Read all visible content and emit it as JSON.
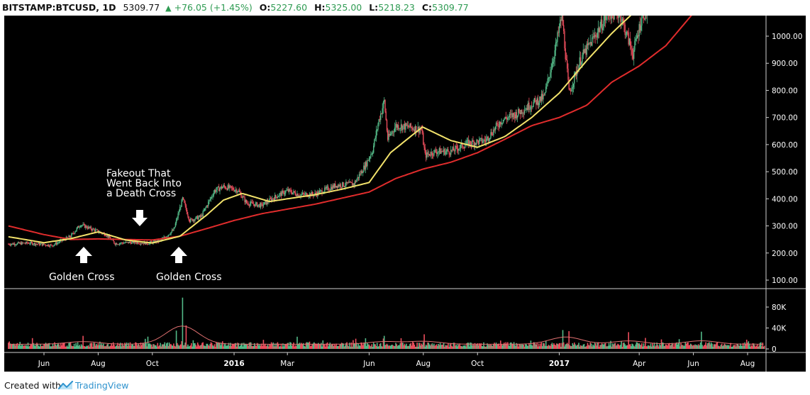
{
  "header": {
    "symbol": "BITSTAMP:BTCUSD, 1D",
    "last": "5309.77",
    "change": "+76.05 (+1.45%)",
    "o_label": "O:",
    "o_value": "5227.60",
    "h_label": "H:",
    "h_value": "5325.00",
    "l_label": "L:",
    "l_value": "5218.23",
    "c_label": "C:",
    "c_value": "5309.77"
  },
  "footer": {
    "created_with": "Created with",
    "brand": "TradingView"
  },
  "colors": {
    "background": "#000000",
    "bull": "#53b987",
    "bear": "#eb4d5c",
    "ma_fast": "#f2e26b",
    "ma_slow": "#e02c2c",
    "text": "#ffffff",
    "up": "#2e9b52"
  },
  "annotations": {
    "fakeout": [
      "Fakeout That",
      "Went Back Into",
      "a Death Cross"
    ],
    "golden_cross_1": "Golden Cross",
    "golden_cross_2": "Golden Cross"
  },
  "chart_data": {
    "type": "candlestick",
    "symbol": "BITSTAMP:BTCUSD",
    "interval": "1D",
    "x_ticks": [
      {
        "label": "Jun",
        "date": "2015-06-01",
        "bold": false
      },
      {
        "label": "Aug",
        "date": "2015-08-01",
        "bold": false
      },
      {
        "label": "Oct",
        "date": "2015-10-01",
        "bold": false
      },
      {
        "label": "2016",
        "date": "2016-01-01",
        "bold": true
      },
      {
        "label": "Mar",
        "date": "2016-03-01",
        "bold": false
      },
      {
        "label": "Jun",
        "date": "2016-06-01",
        "bold": false
      },
      {
        "label": "Aug",
        "date": "2016-08-01",
        "bold": false
      },
      {
        "label": "Oct",
        "date": "2016-10-01",
        "bold": false
      },
      {
        "label": "2017",
        "date": "2017-01-01",
        "bold": true
      },
      {
        "label": "Apr",
        "date": "2017-04-01",
        "bold": false
      },
      {
        "label": "Jun",
        "date": "2017-06-01",
        "bold": false
      },
      {
        "label": "Aug",
        "date": "2017-08-01",
        "bold": false
      }
    ],
    "price_axis": {
      "ticks": [
        "1000.00",
        "900.00",
        "800.00",
        "700.00",
        "600.00",
        "500.00",
        "400.00",
        "300.00",
        "200.00",
        "100.00"
      ],
      "range": [
        75,
        1085
      ]
    },
    "volume_axis": {
      "ticks": [
        "80K",
        "40K",
        "0"
      ],
      "range": [
        0,
        110000
      ]
    },
    "price_series": [
      {
        "date": "2015-04-22",
        "price": 233
      },
      {
        "date": "2015-05-15",
        "price": 237
      },
      {
        "date": "2015-06-10",
        "price": 228
      },
      {
        "date": "2015-07-01",
        "price": 262
      },
      {
        "date": "2015-07-12",
        "price": 305
      },
      {
        "date": "2015-07-25",
        "price": 288
      },
      {
        "date": "2015-08-10",
        "price": 268
      },
      {
        "date": "2015-08-20",
        "price": 235
      },
      {
        "date": "2015-09-10",
        "price": 240
      },
      {
        "date": "2015-09-25",
        "price": 236
      },
      {
        "date": "2015-10-10",
        "price": 245
      },
      {
        "date": "2015-10-25",
        "price": 285
      },
      {
        "date": "2015-11-04",
        "price": 400
      },
      {
        "date": "2015-11-12",
        "price": 320
      },
      {
        "date": "2015-11-25",
        "price": 335
      },
      {
        "date": "2015-12-10",
        "price": 430
      },
      {
        "date": "2015-12-20",
        "price": 445
      },
      {
        "date": "2016-01-05",
        "price": 432
      },
      {
        "date": "2016-01-15",
        "price": 385
      },
      {
        "date": "2016-02-01",
        "price": 375
      },
      {
        "date": "2016-02-15",
        "price": 405
      },
      {
        "date": "2016-03-01",
        "price": 430
      },
      {
        "date": "2016-03-15",
        "price": 415
      },
      {
        "date": "2016-04-01",
        "price": 417
      },
      {
        "date": "2016-04-25",
        "price": 450
      },
      {
        "date": "2016-05-15",
        "price": 455
      },
      {
        "date": "2016-05-28",
        "price": 525
      },
      {
        "date": "2016-06-05",
        "price": 580
      },
      {
        "date": "2016-06-12",
        "price": 690
      },
      {
        "date": "2016-06-18",
        "price": 760
      },
      {
        "date": "2016-06-22",
        "price": 620
      },
      {
        "date": "2016-07-01",
        "price": 670
      },
      {
        "date": "2016-07-15",
        "price": 665
      },
      {
        "date": "2016-07-30",
        "price": 655
      },
      {
        "date": "2016-08-03",
        "price": 560
      },
      {
        "date": "2016-08-15",
        "price": 575
      },
      {
        "date": "2016-09-01",
        "price": 575
      },
      {
        "date": "2016-09-20",
        "price": 605
      },
      {
        "date": "2016-10-10",
        "price": 615
      },
      {
        "date": "2016-10-28",
        "price": 690
      },
      {
        "date": "2016-11-15",
        "price": 715
      },
      {
        "date": "2016-12-01",
        "price": 750
      },
      {
        "date": "2016-12-15",
        "price": 775
      },
      {
        "date": "2016-12-28",
        "price": 960
      },
      {
        "date": "2017-01-04",
        "price": 1080
      },
      {
        "date": "2017-01-12",
        "price": 790
      },
      {
        "date": "2017-01-25",
        "price": 915
      },
      {
        "date": "2017-02-10",
        "price": 1000
      },
      {
        "date": "2017-02-25",
        "price": 1085
      },
      {
        "date": "2017-03-10",
        "price": 1085
      },
      {
        "date": "2017-03-20",
        "price": 985
      },
      {
        "date": "2017-03-25",
        "price": 935
      },
      {
        "date": "2017-04-05",
        "price": 1085
      }
    ],
    "ma_fast": {
      "name": "",
      "points": [
        {
          "date": "2015-04-22",
          "value": 260
        },
        {
          "date": "2015-06-01",
          "value": 238
        },
        {
          "date": "2015-07-01",
          "value": 253
        },
        {
          "date": "2015-08-01",
          "value": 278
        },
        {
          "date": "2015-09-01",
          "value": 248
        },
        {
          "date": "2015-10-01",
          "value": 237
        },
        {
          "date": "2015-11-01",
          "value": 262
        },
        {
          "date": "2015-12-01",
          "value": 340
        },
        {
          "date": "2015-12-20",
          "value": 395
        },
        {
          "date": "2016-01-10",
          "value": 420
        },
        {
          "date": "2016-02-10",
          "value": 390
        },
        {
          "date": "2016-03-01",
          "value": 400
        },
        {
          "date": "2016-04-01",
          "value": 415
        },
        {
          "date": "2016-05-01",
          "value": 435
        },
        {
          "date": "2016-06-01",
          "value": 460
        },
        {
          "date": "2016-06-25",
          "value": 570
        },
        {
          "date": "2016-07-31",
          "value": 665
        },
        {
          "date": "2016-09-01",
          "value": 615
        },
        {
          "date": "2016-10-01",
          "value": 590
        },
        {
          "date": "2016-11-01",
          "value": 630
        },
        {
          "date": "2016-12-01",
          "value": 700
        },
        {
          "date": "2017-01-01",
          "value": 790
        },
        {
          "date": "2017-02-01",
          "value": 910
        },
        {
          "date": "2017-03-01",
          "value": 1010
        },
        {
          "date": "2017-03-25",
          "value": 1085
        }
      ]
    },
    "ma_slow": {
      "name": "",
      "points": [
        {
          "date": "2015-04-22",
          "value": 300
        },
        {
          "date": "2015-06-01",
          "value": 268
        },
        {
          "date": "2015-07-01",
          "value": 250
        },
        {
          "date": "2015-08-01",
          "value": 252
        },
        {
          "date": "2015-09-01",
          "value": 250
        },
        {
          "date": "2015-10-01",
          "value": 248
        },
        {
          "date": "2015-11-01",
          "value": 262
        },
        {
          "date": "2015-12-01",
          "value": 290
        },
        {
          "date": "2016-01-01",
          "value": 320
        },
        {
          "date": "2016-02-01",
          "value": 345
        },
        {
          "date": "2016-04-01",
          "value": 380
        },
        {
          "date": "2016-06-01",
          "value": 425
        },
        {
          "date": "2016-07-01",
          "value": 475
        },
        {
          "date": "2016-08-01",
          "value": 510
        },
        {
          "date": "2016-09-01",
          "value": 535
        },
        {
          "date": "2016-10-01",
          "value": 570
        },
        {
          "date": "2016-11-01",
          "value": 620
        },
        {
          "date": "2016-12-01",
          "value": 670
        },
        {
          "date": "2017-01-01",
          "value": 700
        },
        {
          "date": "2017-02-01",
          "value": 745
        },
        {
          "date": "2017-03-01",
          "value": 830
        },
        {
          "date": "2017-04-01",
          "value": 890
        },
        {
          "date": "2017-05-01",
          "value": 965
        },
        {
          "date": "2017-06-01",
          "value": 1085
        }
      ]
    },
    "volume_peaks": [
      {
        "date": "2015-07-15",
        "volume": 25000
      },
      {
        "date": "2015-10-28",
        "volume": 35000
      },
      {
        "date": "2015-11-04",
        "volume": 98000
      },
      {
        "date": "2015-11-08",
        "volume": 45000
      },
      {
        "date": "2016-06-18",
        "volume": 25000
      },
      {
        "date": "2016-08-02",
        "volume": 28000
      },
      {
        "date": "2017-01-05",
        "volume": 36000
      },
      {
        "date": "2017-01-12",
        "volume": 34000
      },
      {
        "date": "2017-03-20",
        "volume": 32000
      },
      {
        "date": "2017-06-10",
        "volume": 33000
      }
    ]
  }
}
